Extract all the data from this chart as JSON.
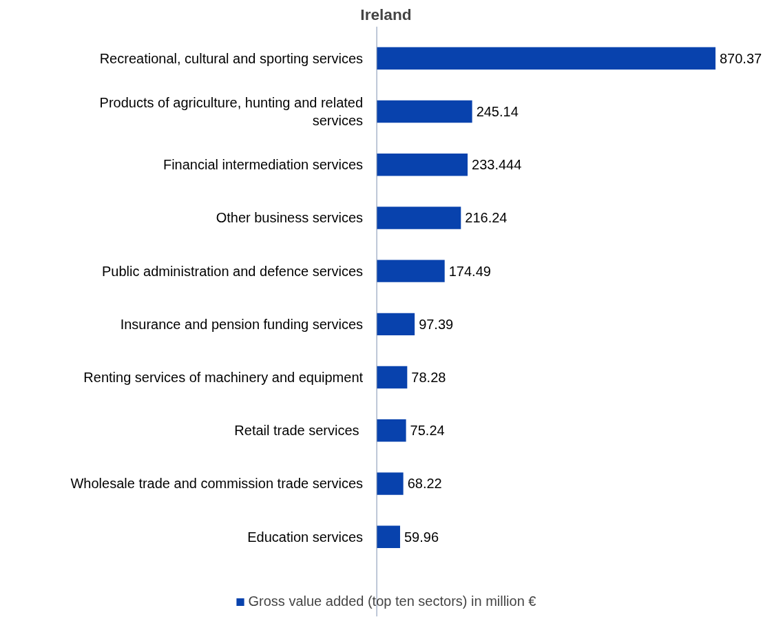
{
  "chart_data": {
    "type": "bar",
    "orientation": "horizontal",
    "title": "Ireland",
    "categories": [
      "Recreational, cultural and sporting services",
      "Products of agriculture, hunting and related services",
      "Financial intermediation services",
      "Other business services",
      "Public administration and defence services",
      "Insurance and pension funding services",
      "Renting services of machinery and equipment",
      "Retail  trade services",
      "Wholesale trade and commission trade services",
      "Education services"
    ],
    "series": [
      {
        "name": "Gross value added (top ten sectors) in million €",
        "color": "#0842ad",
        "values": [
          870.37,
          245.14,
          233.444,
          216.24,
          174.49,
          97.39,
          78.28,
          75.24,
          68.22,
          59.96
        ]
      }
    ],
    "data_labels": true,
    "legend": "bottom",
    "grid": false
  }
}
